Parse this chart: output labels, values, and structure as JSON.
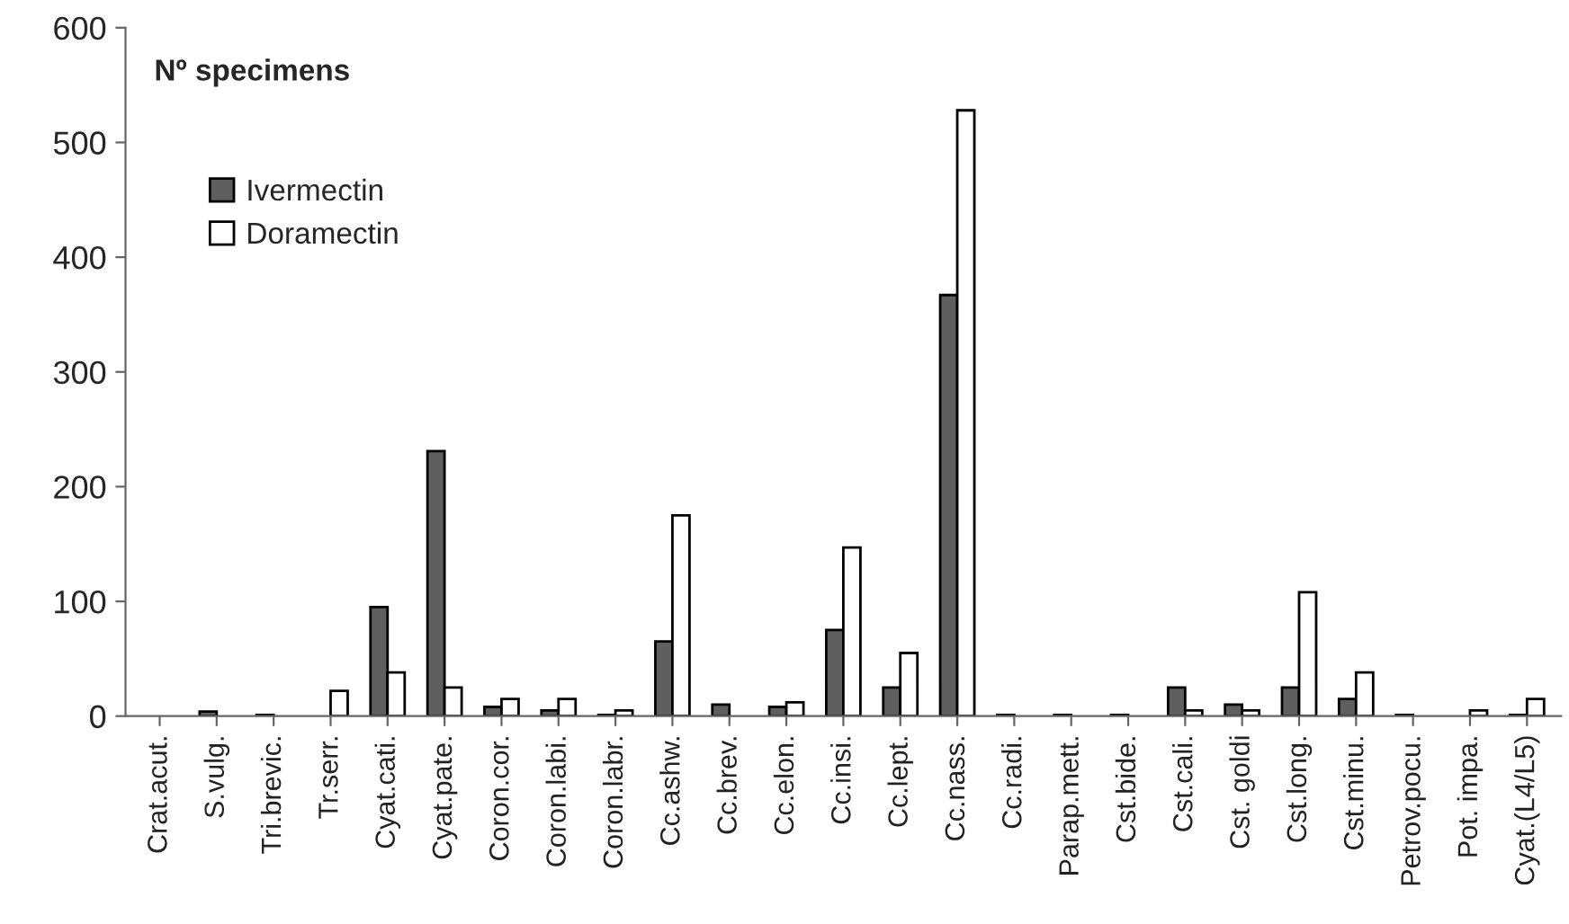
{
  "chart_data": {
    "type": "bar",
    "title": "Nº specimens",
    "categories": [
      "Crat.acut.",
      "S.vulg.",
      "Tri.brevic.",
      "Tr.serr.",
      "Cyat.cati.",
      "Cyat.pate.",
      "Coron.cor.",
      "Coron.labi.",
      "Coron.labr.",
      "Cc.ashw.",
      "Cc.brev.",
      "Cc.elon.",
      "Cc.insi.",
      "Cc.lept.",
      "Cc.nass.",
      "Cc.radi.",
      "Parap.mett.",
      "Cst.bide.",
      "Cst.cali.",
      "Cst. goldi",
      "Cst.long.",
      "Cst.minu.",
      "Petrov.pocu.",
      "Pot. impa.",
      "Cyat.(L4/L5)"
    ],
    "series": [
      {
        "name": "Ivermectin",
        "color": "#5f5f5f",
        "values": [
          0,
          4,
          1,
          0,
          95,
          231,
          8,
          5,
          1,
          65,
          10,
          8,
          75,
          25,
          367,
          1,
          1,
          1,
          25,
          10,
          25,
          15,
          1,
          0,
          1
        ]
      },
      {
        "name": "Doramectin",
        "color": "#ffffff",
        "values": [
          0,
          0,
          0,
          22,
          38,
          25,
          15,
          15,
          5,
          175,
          0,
          12,
          147,
          55,
          528,
          null,
          null,
          null,
          5,
          5,
          108,
          38,
          null,
          5,
          15
        ]
      }
    ],
    "ylim": [
      0,
      600
    ],
    "yticks": [
      0,
      100,
      200,
      300,
      400,
      500,
      600
    ],
    "grid": false,
    "legend": "top left"
  }
}
